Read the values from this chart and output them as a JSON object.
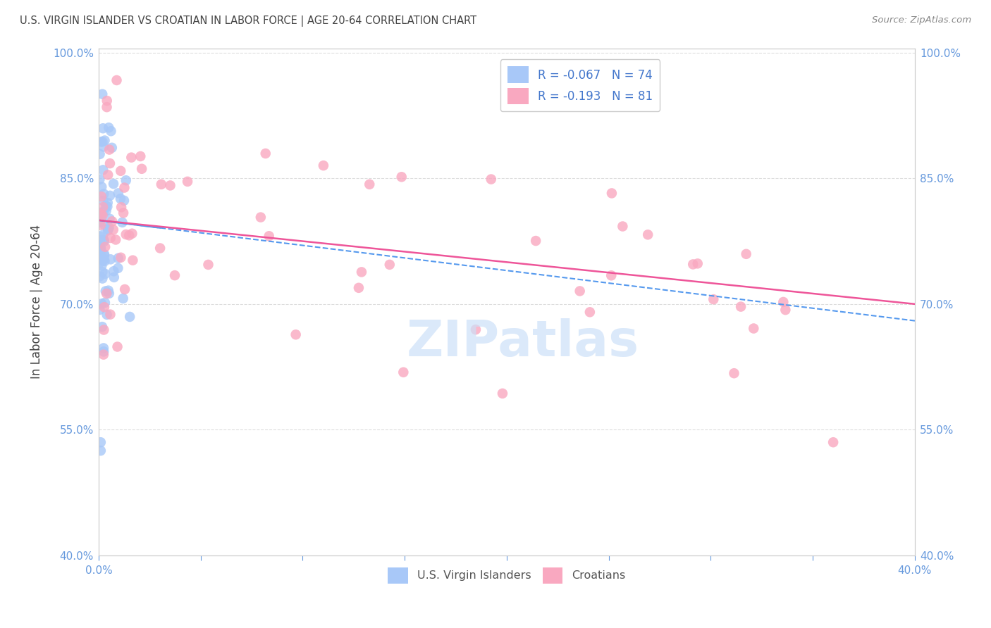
{
  "title": "U.S. VIRGIN ISLANDER VS CROATIAN IN LABOR FORCE | AGE 20-64 CORRELATION CHART",
  "source": "Source: ZipAtlas.com",
  "ylabel": "In Labor Force | Age 20-64",
  "legend_label1": "U.S. Virgin Islanders",
  "legend_label2": "Croatians",
  "r1": -0.067,
  "n1": 74,
  "r2": -0.193,
  "n2": 81,
  "color1": "#a8c8f8",
  "color2": "#f9a8c0",
  "trend_color1": "#5599ee",
  "trend_color2": "#ee5599",
  "watermark": "ZIPatlas",
  "xlim": [
    0.0,
    0.4
  ],
  "ylim": [
    0.4,
    1.005
  ],
  "xtick_positions": [
    0.0,
    0.05,
    0.1,
    0.15,
    0.2,
    0.25,
    0.3,
    0.35,
    0.4
  ],
  "xtick_show": [
    "0.0%",
    "",
    "",
    "",
    "",
    "",
    "",
    "",
    "40.0%"
  ],
  "ytick_positions": [
    0.4,
    0.55,
    0.7,
    0.85,
    1.0
  ],
  "ytick_labels": [
    "40.0%",
    "55.0%",
    "70.0%",
    "85.0%",
    "100.0%"
  ],
  "tick_color": "#6699dd",
  "title_color": "#444444",
  "source_color": "#888888",
  "ylabel_color": "#444444",
  "watermark_color": "#cce0f8",
  "legend_text_color": "#4477cc",
  "bottom_legend_text_color": "#555555",
  "grid_color": "#dddddd",
  "spine_color": "#cccccc"
}
